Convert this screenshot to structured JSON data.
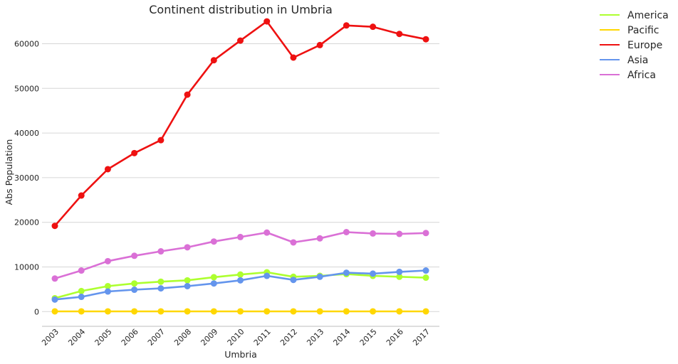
{
  "chart_data": {
    "type": "line",
    "title": "Continent distribution in Umbria",
    "xlabel": "Umbria",
    "ylabel": "Abs Population",
    "x": [
      "2003",
      "2004",
      "2005",
      "2006",
      "2007",
      "2008",
      "2009",
      "2010",
      "2011",
      "2012",
      "2013",
      "2014",
      "2015",
      "2016",
      "2017"
    ],
    "y_ticks": [
      0,
      10000,
      20000,
      30000,
      40000,
      50000,
      60000
    ],
    "ylim": [
      -3300,
      69000
    ],
    "grid": "horizontal",
    "legend_position": "top-right outside",
    "series": [
      {
        "name": "America",
        "color": "#adff2f",
        "values": [
          3000,
          4600,
          5700,
          6300,
          6700,
          7000,
          7700,
          8300,
          8800,
          7800,
          8000,
          8400,
          8000,
          7800,
          7600
        ]
      },
      {
        "name": "Pacific",
        "color": "#ffd700",
        "values": [
          50,
          50,
          50,
          50,
          50,
          50,
          50,
          50,
          50,
          50,
          50,
          50,
          50,
          50,
          50
        ]
      },
      {
        "name": "Europe",
        "color": "#ee1111",
        "values": [
          19200,
          26000,
          31900,
          35500,
          38400,
          48600,
          56300,
          60700,
          65000,
          56900,
          59700,
          64100,
          63800,
          62200,
          61000
        ]
      },
      {
        "name": "Asia",
        "color": "#6495ed",
        "values": [
          2700,
          3300,
          4500,
          4900,
          5200,
          5700,
          6300,
          7000,
          8000,
          7100,
          7800,
          8700,
          8500,
          8900,
          9200
        ]
      },
      {
        "name": "Africa",
        "color": "#da70d6",
        "values": [
          7400,
          9200,
          11300,
          12500,
          13500,
          14400,
          15700,
          16700,
          17700,
          15500,
          16400,
          17800,
          17500,
          17400,
          17600
        ]
      }
    ]
  }
}
